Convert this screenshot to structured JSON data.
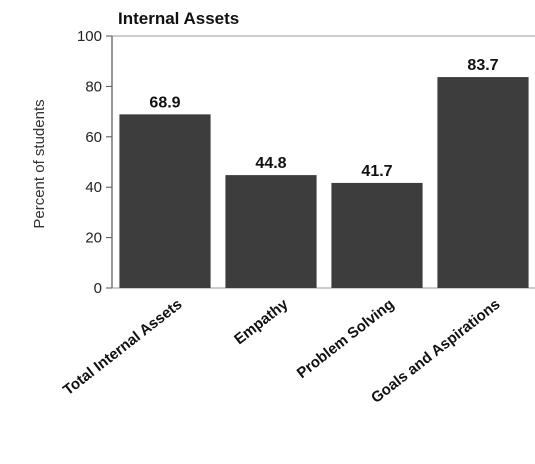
{
  "chart_data": {
    "type": "bar",
    "title": "Internal Assets",
    "ylabel": "Percent of students",
    "xlabel": "",
    "ylim": [
      0,
      100
    ],
    "yticks": [
      0,
      20,
      40,
      60,
      80,
      100
    ],
    "categories": [
      "Total Internal Assets",
      "Empathy",
      "Problem Solving",
      "Goals and Aspirations"
    ],
    "values": [
      68.9,
      44.8,
      41.7,
      83.7
    ],
    "value_labels": [
      "68.9",
      "44.8",
      "41.7",
      "83.7"
    ],
    "bar_color": "#3d3d3d",
    "grid": false,
    "legend": "none"
  }
}
